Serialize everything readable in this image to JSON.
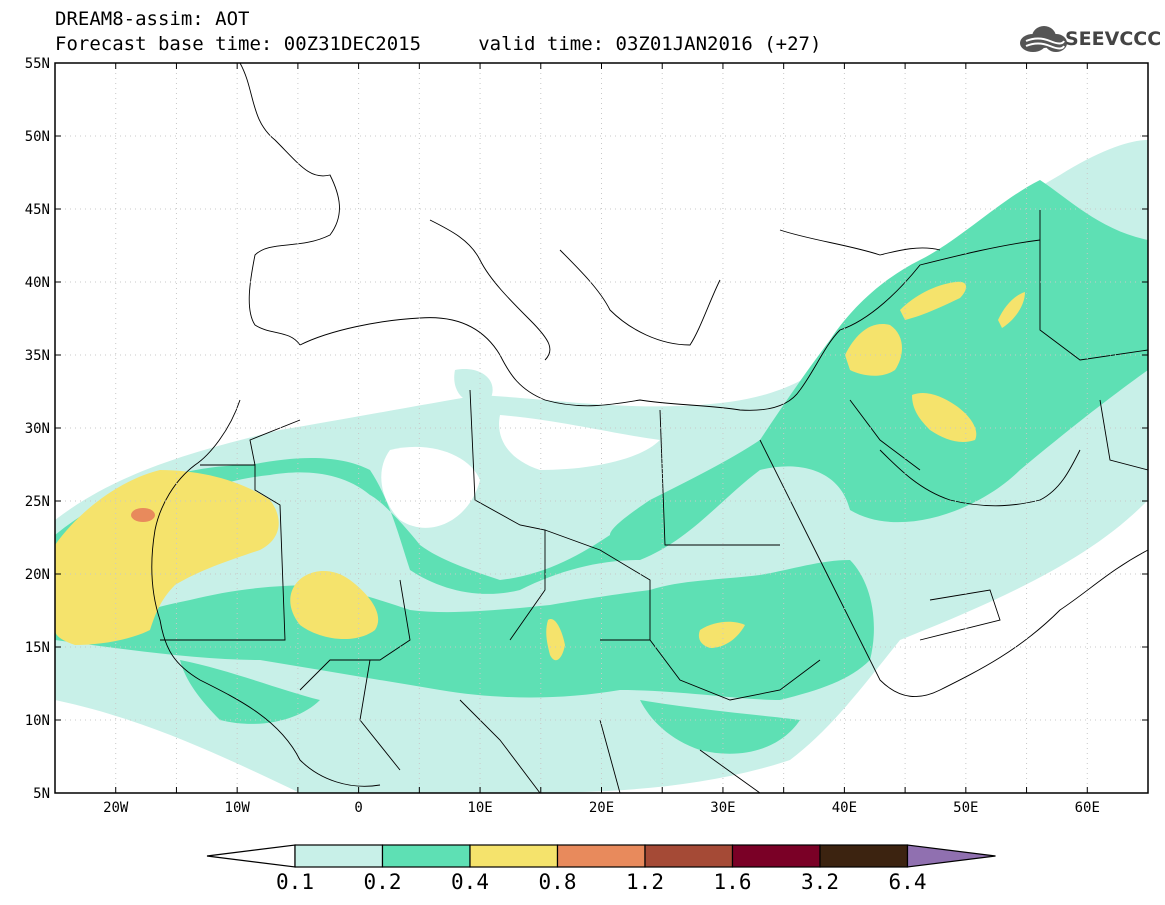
{
  "header": {
    "title_line1": "DREAM8-assim: AOT",
    "title_line2": "Forecast base time: 00Z31DEC2015     valid time: 03Z01JAN2016 (+27)",
    "logo_text": "SEEVCCC",
    "logo_icon": "cloud-icon"
  },
  "map": {
    "lon_range": [
      -25,
      65
    ],
    "lat_range": [
      5,
      55
    ],
    "lat_labels": [
      {
        "value": 55,
        "text": "55N"
      },
      {
        "value": 50,
        "text": "50N"
      },
      {
        "value": 45,
        "text": "45N"
      },
      {
        "value": 40,
        "text": "40N"
      },
      {
        "value": 35,
        "text": "35N"
      },
      {
        "value": 30,
        "text": "30N"
      },
      {
        "value": 25,
        "text": "25N"
      },
      {
        "value": 20,
        "text": "20N"
      },
      {
        "value": 15,
        "text": "15N"
      },
      {
        "value": 10,
        "text": "10N"
      },
      {
        "value": 5,
        "text": "5N"
      }
    ],
    "lon_labels": [
      {
        "value": -20,
        "text": "20W"
      },
      {
        "value": -10,
        "text": "10W"
      },
      {
        "value": 0,
        "text": "0"
      },
      {
        "value": 10,
        "text": "10E"
      },
      {
        "value": 20,
        "text": "20E"
      },
      {
        "value": 30,
        "text": "30E"
      },
      {
        "value": 40,
        "text": "40E"
      },
      {
        "value": 50,
        "text": "50E"
      },
      {
        "value": 60,
        "text": "60E"
      }
    ],
    "grid": true
  },
  "colorbar": {
    "levels": [
      "0.1",
      "0.2",
      "0.4",
      "0.8",
      "1.2",
      "1.6",
      "3.2",
      "6.4"
    ],
    "colors": [
      "#ffffff",
      "#c8f0e8",
      "#5ee0b4",
      "#f5e36c",
      "#e88a5c",
      "#a54a36",
      "#7a0026",
      "#3c2310",
      "#9070b0"
    ]
  }
}
